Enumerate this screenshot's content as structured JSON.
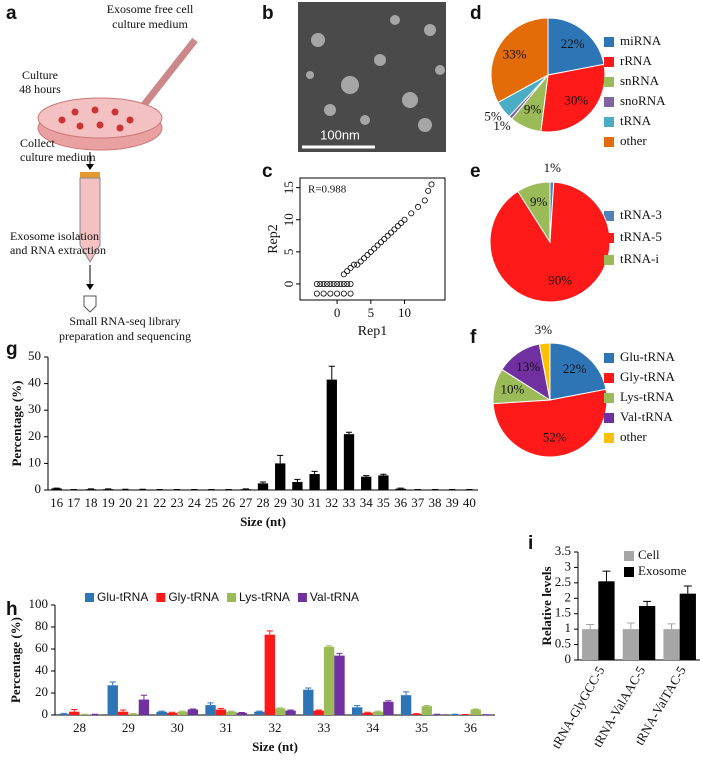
{
  "schematic": {
    "letter": "a",
    "medium": [
      "Exosome free cell",
      "culture medium"
    ],
    "culture": [
      "Culture",
      "48 hours"
    ],
    "collect": [
      "Collect",
      "culture medium"
    ],
    "isolation": [
      "Exosome isolation",
      "and RNA extraction"
    ],
    "sequencing": [
      "Small RNA-seq library",
      "preparation and sequencing"
    ]
  },
  "micrograph": {
    "letter": "b",
    "scale_bar": "100nm"
  },
  "chart_data": [
    {
      "type": "scatter",
      "panel": "c",
      "annotation": "R=0.988",
      "xlabel": "Rep1",
      "ylabel": "Rep2",
      "x": [
        -3,
        -2.5,
        -2,
        -1.5,
        -1,
        -0.5,
        0,
        0.5,
        1,
        1.5,
        2,
        -3,
        -2,
        -1,
        0,
        1,
        2,
        1,
        1.5,
        2,
        2.5,
        3,
        3.5,
        4,
        4.5,
        5,
        5.5,
        6,
        6.5,
        7,
        7.5,
        8,
        8.5,
        9,
        9.5,
        10,
        11,
        12,
        13,
        13.5,
        14
      ],
      "y": [
        0,
        0,
        0,
        0,
        0,
        0,
        0,
        0,
        0,
        0,
        0,
        -1.5,
        -1.5,
        -1.5,
        -1.5,
        -1.5,
        -1.5,
        1.5,
        2,
        2.5,
        3,
        3,
        3.5,
        4,
        4.5,
        5,
        5.5,
        6,
        6.5,
        7,
        7.5,
        8,
        8.5,
        9,
        9.5,
        10,
        11,
        12,
        13,
        14.5,
        15.5
      ],
      "xlim": [
        -5.5,
        16
      ],
      "xticks": [
        0,
        5,
        10
      ],
      "ylim": [
        -2.5,
        16.5
      ],
      "yticks": [
        0,
        5,
        10,
        15
      ]
    },
    {
      "type": "pie",
      "panel": "d",
      "categories": [
        "miRNA",
        "rRNA",
        "snRNA",
        "snoRNA",
        "tRNA",
        "other"
      ],
      "values": [
        22,
        30,
        9,
        1,
        5,
        33
      ],
      "value_labels": [
        "22%",
        "30%",
        "9%",
        "1%",
        "5%",
        "33%"
      ],
      "colors": [
        "#2e75b6",
        "#ff1a1a",
        "#9bbb59",
        "#8064a2",
        "#4bacc6",
        "#e36c09"
      ]
    },
    {
      "type": "pie",
      "panel": "e",
      "categories": [
        "tRNA-3",
        "tRNA-5",
        "tRNA-i"
      ],
      "values": [
        1,
        90,
        9
      ],
      "value_labels": [
        "1%",
        "90%",
        "9%"
      ],
      "colors": [
        "#4f81bd",
        "#ff1a1a",
        "#9bbb59"
      ]
    },
    {
      "type": "pie",
      "panel": "f",
      "categories": [
        "Glu-tRNA",
        "Gly-tRNA",
        "Lys-tRNA",
        "Val-tRNA",
        "other"
      ],
      "values": [
        22,
        52,
        10,
        13,
        3
      ],
      "value_labels": [
        "22%",
        "52%",
        "10%",
        "13%",
        "3%"
      ],
      "colors": [
        "#2e75b6",
        "#ff1a1a",
        "#9bbb59",
        "#7030a0",
        "#ffc000"
      ]
    },
    {
      "type": "bar",
      "panel": "g",
      "xlabel": "Size (nt)",
      "ylabel": "Percentage (%)",
      "categories": [
        "16",
        "17",
        "18",
        "19",
        "20",
        "21",
        "22",
        "23",
        "24",
        "25",
        "26",
        "27",
        "28",
        "29",
        "30",
        "31",
        "32",
        "33",
        "34",
        "35",
        "36",
        "37",
        "38",
        "39",
        "40"
      ],
      "values": [
        0.6,
        0.1,
        0.3,
        0.3,
        0.2,
        0.2,
        0.1,
        0.1,
        0.1,
        0.1,
        0.1,
        0.3,
        2.5,
        10,
        3,
        6,
        41.5,
        21,
        5,
        5.5,
        0.5,
        0.1,
        0.1,
        0.1,
        0.1
      ],
      "errors": [
        0.1,
        0.1,
        0.1,
        0.1,
        0.1,
        0.1,
        0.1,
        0.1,
        0.1,
        0.1,
        0.1,
        0.1,
        0.5,
        3,
        1,
        1,
        5,
        0.7,
        0.4,
        0.4,
        0.2,
        0.1,
        0.1,
        0.1,
        0.1
      ],
      "color": "#000000",
      "ylim": [
        0,
        50
      ],
      "yticks": [
        0,
        10,
        20,
        30,
        40,
        50
      ]
    },
    {
      "type": "bar",
      "panel": "h",
      "xlabel": "Size (nt)",
      "ylabel": "Percentage (%)",
      "legend": "top",
      "categories": [
        "28",
        "29",
        "30",
        "31",
        "32",
        "33",
        "34",
        "35",
        "36"
      ],
      "series": [
        {
          "name": "Glu-tRNA",
          "color": "#2e75b6",
          "values": [
            1,
            27,
            3,
            9,
            3,
            23,
            7,
            18,
            0.5
          ],
          "errors": [
            0.5,
            3,
            0.5,
            2,
            0.5,
            1.5,
            1.5,
            3,
            0.2
          ]
        },
        {
          "name": "Gly-tRNA",
          "color": "#ff1a1a",
          "values": [
            3,
            3,
            2,
            5,
            73,
            4,
            2,
            1,
            0.3
          ],
          "errors": [
            2,
            1.5,
            0.5,
            1,
            3.5,
            0.5,
            0.5,
            0.3,
            0.1
          ]
        },
        {
          "name": "Lys-tRNA",
          "color": "#9bbb59",
          "values": [
            0.5,
            1,
            3,
            3,
            6,
            62,
            3,
            8,
            5
          ],
          "errors": [
            0.2,
            0.3,
            0.5,
            0.5,
            0.5,
            0.8,
            0.5,
            0.5,
            0.5
          ]
        },
        {
          "name": "Val-tRNA",
          "color": "#7030a0",
          "values": [
            0.5,
            14,
            5,
            2,
            4,
            54,
            12,
            0.5,
            0.2
          ],
          "errors": [
            0.2,
            4,
            0.5,
            0.3,
            0.5,
            2,
            1,
            0.2,
            0.1
          ]
        }
      ],
      "ylim": [
        0,
        100
      ],
      "yticks": [
        0,
        20,
        40,
        60,
        80,
        100
      ]
    },
    {
      "type": "bar",
      "panel": "i",
      "ylabel": "Relative levels",
      "legend": "upper right",
      "categories": [
        "tRNA-GlyGCC-5",
        "tRNA-ValAAC-5",
        "tRNA-ValTAC-5"
      ],
      "series": [
        {
          "name": "Cell",
          "color": "#a6a6a6",
          "values": [
            1,
            1,
            1
          ],
          "errors": [
            0.15,
            0.2,
            0.17
          ]
        },
        {
          "name": "Exosome",
          "color": "#000000",
          "values": [
            2.55,
            1.75,
            2.15
          ],
          "errors": [
            0.33,
            0.15,
            0.25
          ]
        }
      ],
      "ylim": [
        0,
        3.5
      ],
      "yticks": [
        0,
        0.5,
        1,
        1.5,
        2,
        2.5,
        3,
        3.5
      ]
    }
  ]
}
